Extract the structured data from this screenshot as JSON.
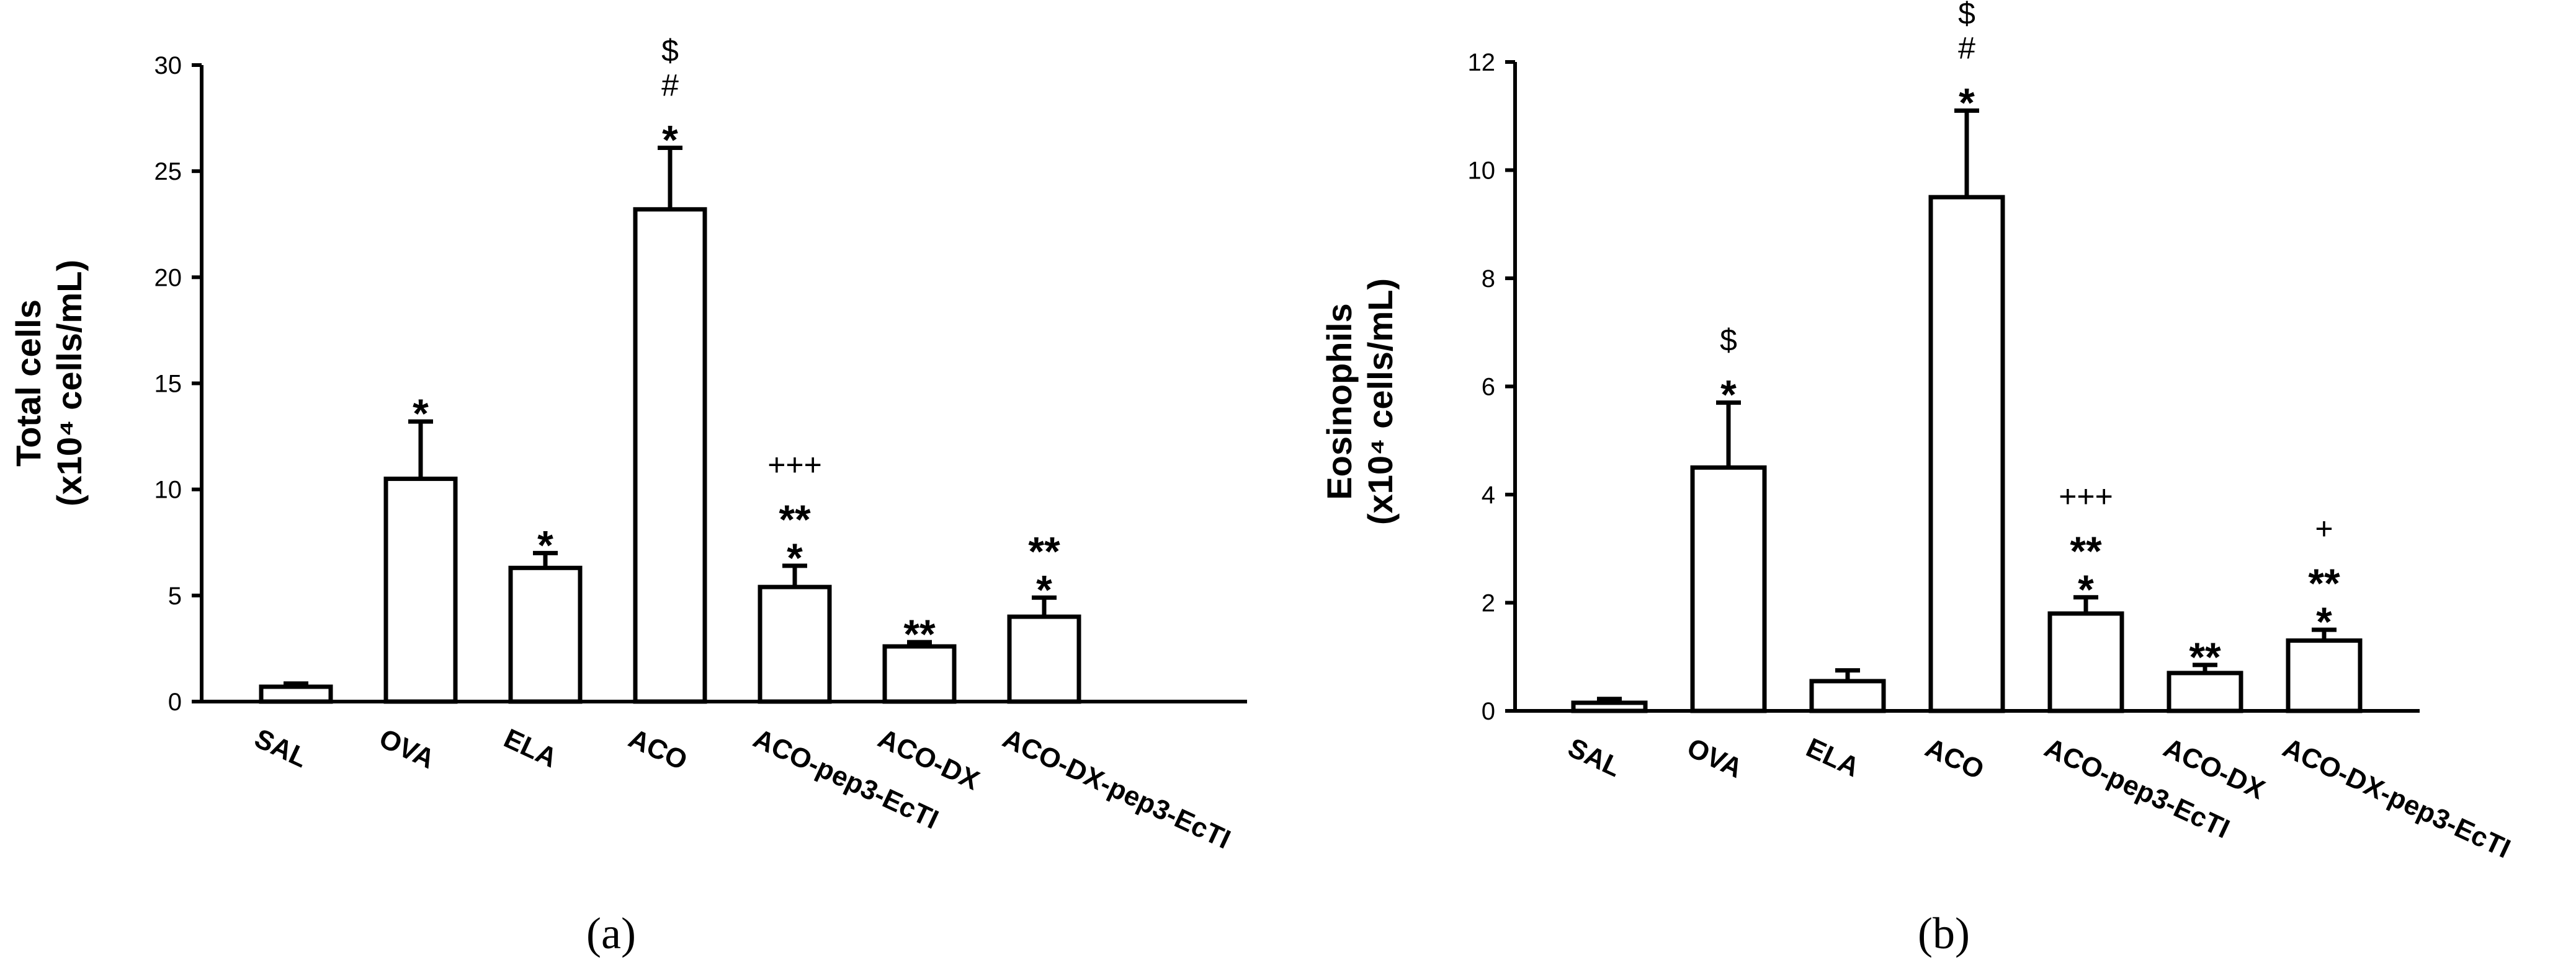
{
  "chart_data": [
    {
      "type": "bar",
      "panel": "(a)",
      "ylabel": "Total cells",
      "ylabel_unit": "(x10⁴ cells/mL)",
      "categories": [
        "SAL",
        "OVA",
        "ELA",
        "ACO",
        "ACO-pep3-EcTI",
        "ACO-DX",
        "ACO-DX-pep3-EcTI"
      ],
      "values": [
        0.7,
        10.5,
        6.3,
        23.2,
        5.4,
        2.6,
        4.0
      ],
      "errors": [
        0.15,
        2.7,
        0.7,
        2.9,
        1.0,
        0.2,
        0.9
      ],
      "annotations": [
        [],
        [
          "*"
        ],
        [
          "*"
        ],
        [
          "*",
          "#",
          "$"
        ],
        [
          "*",
          "**",
          "+++"
        ],
        [
          "**"
        ],
        [
          "*",
          "**"
        ]
      ],
      "ylim": [
        0,
        30
      ],
      "yticks": [
        0,
        5,
        10,
        15,
        20,
        25,
        30
      ]
    },
    {
      "type": "bar",
      "panel": "(b)",
      "ylabel": "Eosinophils",
      "ylabel_unit": "(x10⁴ cells/mL)",
      "categories": [
        "SAL",
        "OVA",
        "ELA",
        "ACO",
        "ACO-pep3-EcTI",
        "ACO-DX",
        "ACO-DX-pep3-EcTI"
      ],
      "values": [
        0.15,
        4.5,
        0.55,
        9.5,
        1.8,
        0.7,
        1.3
      ],
      "errors": [
        0.07,
        1.2,
        0.2,
        1.6,
        0.3,
        0.15,
        0.2
      ],
      "annotations": [
        [],
        [
          "*",
          "$"
        ],
        [],
        [
          "*",
          "#",
          "$"
        ],
        [
          "*",
          "**",
          "+++"
        ],
        [
          "**"
        ],
        [
          "*",
          "**",
          "+"
        ]
      ],
      "ylim": [
        0,
        12
      ],
      "yticks": [
        0,
        2,
        4,
        6,
        8,
        10,
        12
      ]
    }
  ]
}
